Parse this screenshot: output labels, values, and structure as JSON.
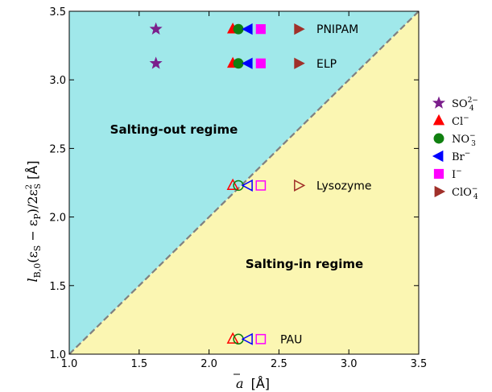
{
  "chart_data": {
    "type": "scatter",
    "xlim": [
      1.0,
      3.5
    ],
    "ylim": [
      1.0,
      3.5
    ],
    "x_ticks": [
      "1.0",
      "1.5",
      "2.0",
      "2.5",
      "3.0",
      "3.5"
    ],
    "y_ticks": [
      "1.0",
      "1.5",
      "2.0",
      "2.5",
      "3.0",
      "3.5"
    ],
    "xlabel": {
      "main": "a",
      "unit": "[Å]"
    },
    "ylabel": {
      "l": "l",
      "l_sub": "B,0",
      "mid": "(ε",
      "s1": "S",
      "minus": " − ε",
      "p": "P",
      "over": ")/2ε",
      "s2_sup": "2",
      "s2_sub": "S",
      "unit": " [Å]"
    },
    "diagonal_line": {
      "from": [
        1.0,
        1.0
      ],
      "to": [
        3.5,
        3.5
      ],
      "style": "dashed",
      "color": "#808080"
    },
    "regions": [
      {
        "label": "Salting-out regime",
        "color": "#a0e8ea",
        "side": "above-diagonal"
      },
      {
        "label": "Salting-in regime",
        "color": "#fbf6b2",
        "side": "below-diagonal"
      }
    ],
    "series": [
      {
        "ion": "SO4",
        "name": "SO",
        "sub": "4",
        "sup": "2−",
        "marker": "star",
        "color": "#7b1f8c",
        "x": 1.62
      },
      {
        "ion": "Cl",
        "name": "Cl",
        "sub": "",
        "sup": "−",
        "marker": "triangle-up",
        "color": "#ff0000",
        "x": 2.17
      },
      {
        "ion": "NO3",
        "name": "NO",
        "sub": "3",
        "sup": "−",
        "marker": "circle",
        "color": "#108010",
        "x": 2.21
      },
      {
        "ion": "Br",
        "name": "Br",
        "sub": "",
        "sup": "−",
        "marker": "triangle-left",
        "color": "#0000ff",
        "x": 2.28
      },
      {
        "ion": "I",
        "name": "I",
        "sub": "",
        "sup": "−",
        "marker": "square",
        "color": "#ff00ff",
        "x": 2.37
      },
      {
        "ion": "ClO4",
        "name": "ClO",
        "sub": "4",
        "sup": "−",
        "marker": "triangle-right",
        "color": "#a0302a",
        "x": 2.64
      }
    ],
    "proteins": [
      {
        "label": "PNIPAM",
        "y": 3.37,
        "ions": [
          "SO4",
          "Cl",
          "NO3",
          "Br",
          "I",
          "ClO4"
        ],
        "filled": true
      },
      {
        "label": "ELP",
        "y": 3.12,
        "ions": [
          "SO4",
          "Cl",
          "NO3",
          "Br",
          "I",
          "ClO4"
        ],
        "filled": true
      },
      {
        "label": "Lysozyme",
        "y": 2.23,
        "ions": [
          "Cl",
          "NO3",
          "Br",
          "I",
          "ClO4"
        ],
        "filled": false
      },
      {
        "label": "PAU",
        "y": 1.11,
        "ions": [
          "Cl",
          "NO3",
          "Br",
          "I"
        ],
        "filled": false
      }
    ],
    "legend_position": "right-outside"
  }
}
